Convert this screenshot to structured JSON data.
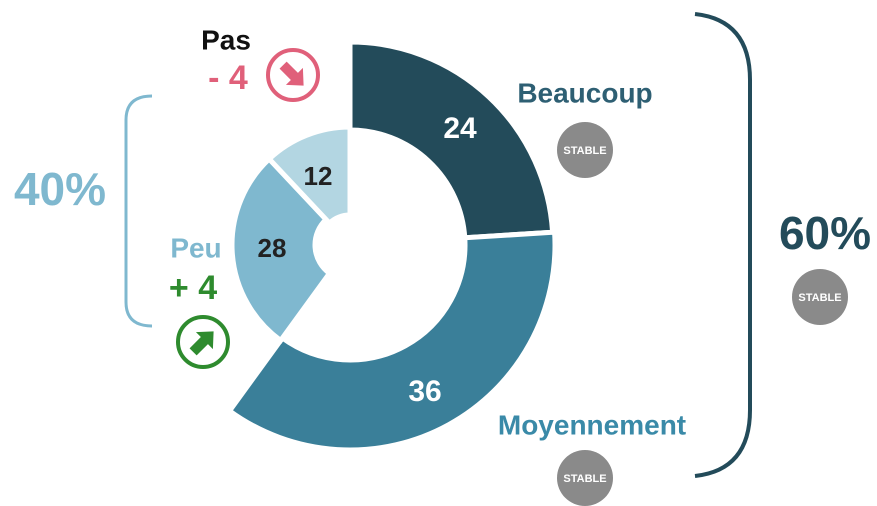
{
  "chart_data": {
    "type": "donut",
    "categories": [
      "Beaucoup",
      "Moyennement",
      "Peu",
      "Pas"
    ],
    "values": [
      24,
      36,
      28,
      12
    ],
    "colors": [
      "#234b5a",
      "#3a7f99",
      "#7fb8cf",
      "#b3d6e2"
    ],
    "label_colors": [
      "#2e5f73",
      "#3a8aa8",
      "#7fb8cf",
      "#111111"
    ],
    "changes": [
      "STABLE",
      "STABLE",
      "+ 4",
      "- 4"
    ],
    "change_colors": [
      "#8a8a8a",
      "#8a8a8a",
      "#2e8b2e",
      "#e0607a"
    ],
    "groups": [
      {
        "label": "60%",
        "status": "STABLE",
        "color": "#234b5a"
      },
      {
        "label": "40%",
        "color": "#7fb8cf"
      }
    ]
  }
}
